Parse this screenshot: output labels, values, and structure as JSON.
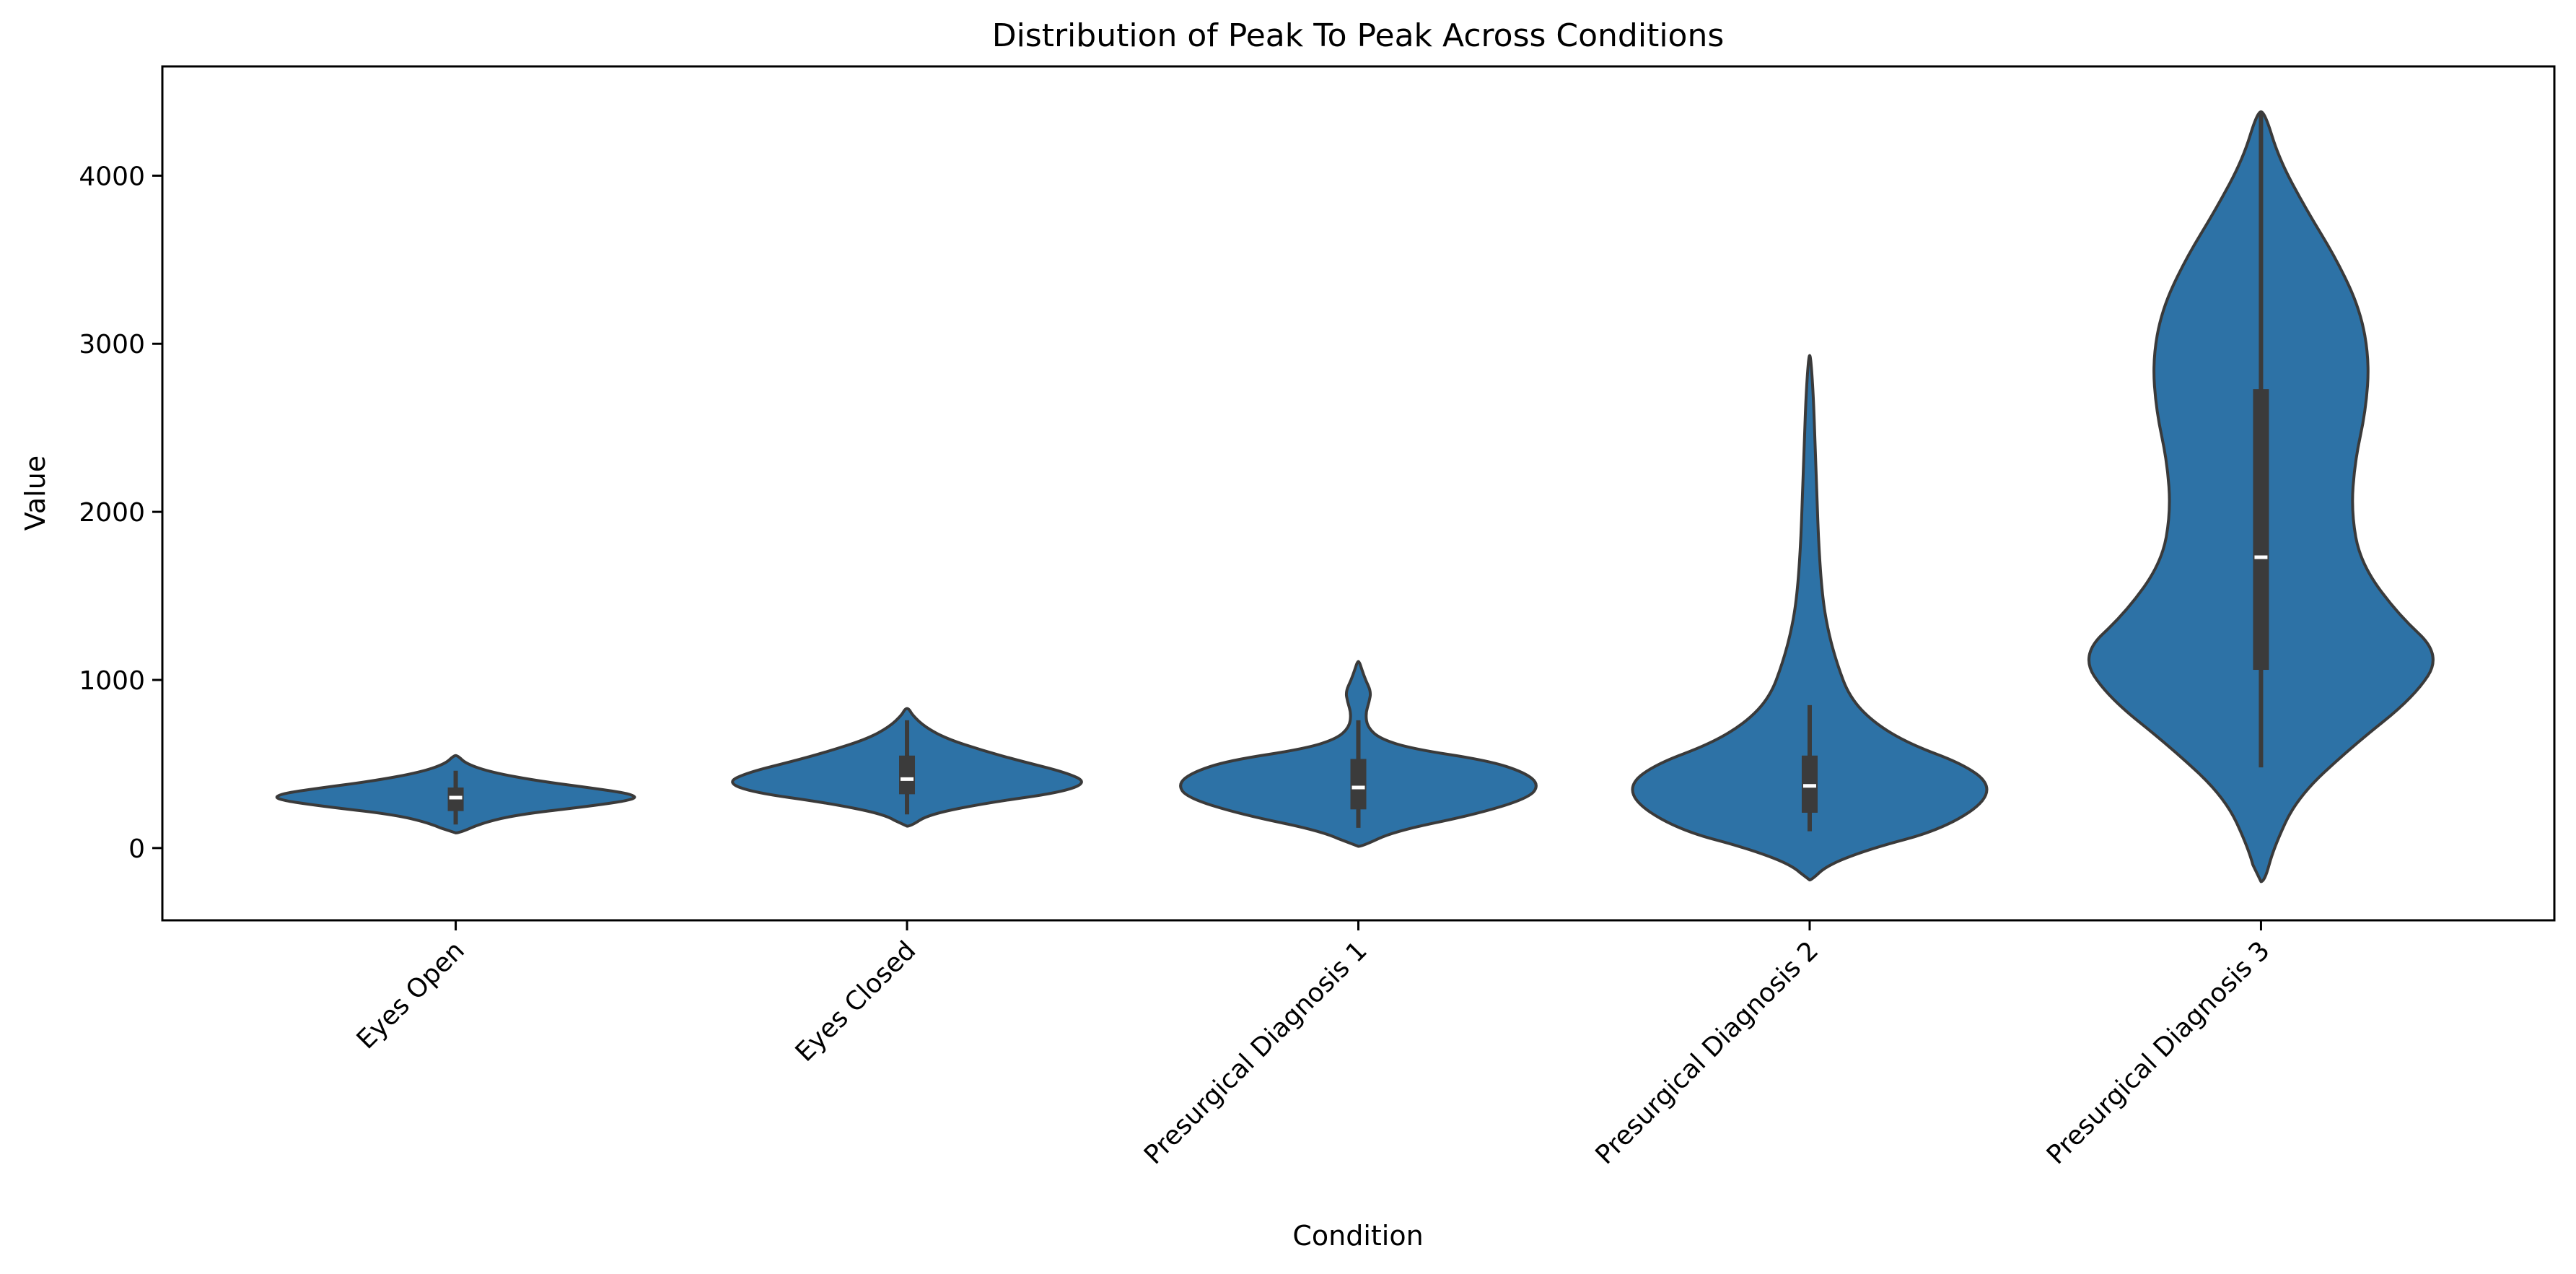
{
  "chart_data": {
    "type": "violin",
    "title": "Distribution of Peak To Peak Across Conditions",
    "xlabel": "Condition",
    "ylabel": "Value",
    "ylim": [
      -430,
      4650
    ],
    "yticks": [
      0,
      1000,
      2000,
      3000,
      4000
    ],
    "grid": false,
    "legend": "none",
    "color": "#2d72a6",
    "categories": [
      "Eyes Open",
      "Eyes Closed",
      "Presurgical Diagnosis 1",
      "Presurgical Diagnosis 2",
      "Presurgical Diagnosis 3"
    ],
    "violins": [
      {
        "category": "Eyes Open",
        "min": 90,
        "q1": 220,
        "median": 300,
        "q3": 360,
        "whisker_low": 140,
        "whisker_high": 460,
        "max": 550,
        "density": [
          [
            90,
            0.02
          ],
          [
            150,
            0.15
          ],
          [
            200,
            0.35
          ],
          [
            250,
            0.75
          ],
          [
            290,
            1.0
          ],
          [
            320,
            0.98
          ],
          [
            350,
            0.8
          ],
          [
            400,
            0.45
          ],
          [
            450,
            0.2
          ],
          [
            500,
            0.06
          ],
          [
            550,
            0.01
          ]
        ]
      },
      {
        "category": "Eyes Closed",
        "min": 130,
        "q1": 320,
        "median": 410,
        "q3": 550,
        "whisker_low": 200,
        "whisker_high": 760,
        "max": 830,
        "density": [
          [
            130,
            0.02
          ],
          [
            200,
            0.12
          ],
          [
            270,
            0.45
          ],
          [
            330,
            0.85
          ],
          [
            390,
            1.0
          ],
          [
            450,
            0.88
          ],
          [
            520,
            0.62
          ],
          [
            580,
            0.42
          ],
          [
            650,
            0.22
          ],
          [
            720,
            0.1
          ],
          [
            790,
            0.03
          ],
          [
            830,
            0.01
          ]
        ]
      },
      {
        "category": "Presurgical Diagnosis 1",
        "min": 10,
        "q1": 230,
        "median": 360,
        "q3": 530,
        "whisker_low": 120,
        "whisker_high": 760,
        "max": 1110,
        "density": [
          [
            10,
            0.02
          ],
          [
            100,
            0.2
          ],
          [
            200,
            0.65
          ],
          [
            300,
            0.95
          ],
          [
            380,
            1.0
          ],
          [
            450,
            0.92
          ],
          [
            520,
            0.72
          ],
          [
            590,
            0.3
          ],
          [
            650,
            0.12
          ],
          [
            720,
            0.05
          ],
          [
            800,
            0.04
          ],
          [
            870,
            0.06
          ],
          [
            930,
            0.07
          ],
          [
            1000,
            0.04
          ],
          [
            1060,
            0.02
          ],
          [
            1110,
            0.005
          ]
        ]
      },
      {
        "category": "Presurgical Diagnosis 2",
        "min": -190,
        "q1": 210,
        "median": 370,
        "q3": 550,
        "whisker_low": 100,
        "whisker_high": 850,
        "max": 2930,
        "density": [
          [
            -190,
            0.01
          ],
          [
            -100,
            0.1
          ],
          [
            0,
            0.35
          ],
          [
            100,
            0.7
          ],
          [
            250,
            0.95
          ],
          [
            380,
            1.0
          ],
          [
            500,
            0.85
          ],
          [
            620,
            0.55
          ],
          [
            750,
            0.35
          ],
          [
            900,
            0.22
          ],
          [
            1100,
            0.15
          ],
          [
            1300,
            0.1
          ],
          [
            1500,
            0.07
          ],
          [
            1800,
            0.05
          ],
          [
            2100,
            0.04
          ],
          [
            2400,
            0.03
          ],
          [
            2700,
            0.02
          ],
          [
            2930,
            0.005
          ]
        ]
      },
      {
        "category": "Presurgical Diagnosis 3",
        "min": -200,
        "q1": 1060,
        "median": 1730,
        "q3": 2730,
        "whisker_low": 480,
        "whisker_high": 4380,
        "max": 4380,
        "density": [
          [
            -200,
            0.02
          ],
          [
            0,
            0.07
          ],
          [
            300,
            0.2
          ],
          [
            600,
            0.5
          ],
          [
            900,
            0.85
          ],
          [
            1150,
            1.0
          ],
          [
            1400,
            0.75
          ],
          [
            1700,
            0.55
          ],
          [
            2000,
            0.5
          ],
          [
            2300,
            0.52
          ],
          [
            2600,
            0.58
          ],
          [
            2900,
            0.6
          ],
          [
            3200,
            0.55
          ],
          [
            3500,
            0.42
          ],
          [
            3800,
            0.25
          ],
          [
            4100,
            0.1
          ],
          [
            4380,
            0.02
          ]
        ]
      }
    ]
  }
}
